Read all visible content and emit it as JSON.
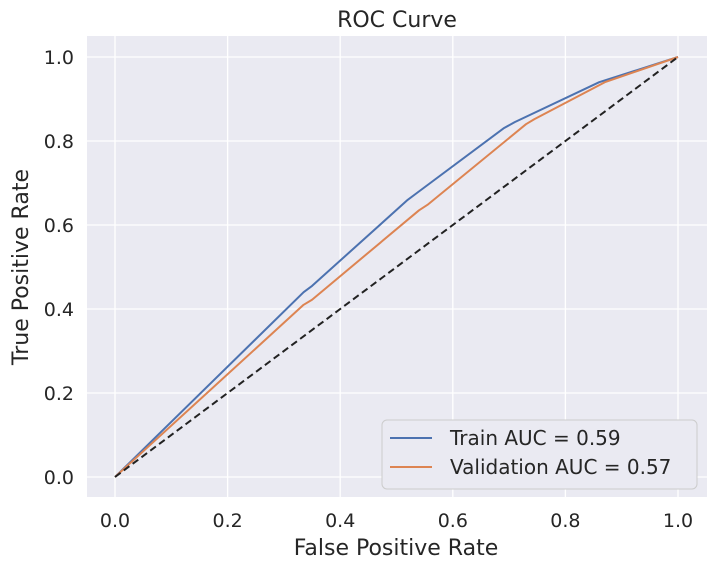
{
  "chart_data": {
    "type": "line",
    "title": "ROC Curve",
    "xlabel": "False Positive Rate",
    "ylabel": "True Positive Rate",
    "xlim": [
      -0.05,
      1.05
    ],
    "ylim": [
      -0.05,
      1.05
    ],
    "xticks": [
      "0.0",
      "0.2",
      "0.4",
      "0.6",
      "0.8",
      "1.0"
    ],
    "yticks": [
      "0.0",
      "0.2",
      "0.4",
      "0.6",
      "0.8",
      "1.0"
    ],
    "xtick_values": [
      0,
      0.2,
      0.4,
      0.6,
      0.8,
      1.0
    ],
    "ytick_values": [
      0,
      0.2,
      0.4,
      0.6,
      0.8,
      1.0
    ],
    "grid": true,
    "legend_position": "lower-right",
    "series": [
      {
        "name": "Train AUC = 0.59",
        "color": "#4c72b0",
        "x": [
          0.0,
          0.335,
          0.35,
          0.52,
          0.535,
          0.69,
          0.71,
          0.86,
          1.0
        ],
        "y": [
          0.0,
          0.44,
          0.455,
          0.66,
          0.675,
          0.83,
          0.845,
          0.94,
          1.0
        ]
      },
      {
        "name": "Validation AUC = 0.57",
        "color": "#dd8452",
        "x": [
          0.0,
          0.335,
          0.35,
          0.54,
          0.555,
          0.73,
          0.745,
          0.87,
          1.0
        ],
        "y": [
          0.0,
          0.41,
          0.422,
          0.635,
          0.648,
          0.84,
          0.852,
          0.94,
          1.0
        ]
      },
      {
        "name": "",
        "color": "#222222",
        "dashed": true,
        "x": [
          0.0,
          1.0
        ],
        "y": [
          0.0,
          1.0
        ]
      }
    ]
  },
  "colors": {
    "plot_background": "#eaeaf2",
    "grid": "#ffffff",
    "text": "#262626"
  }
}
